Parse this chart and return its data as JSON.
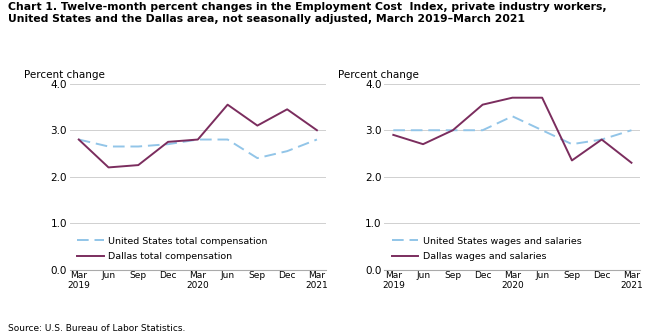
{
  "title": "Chart 1. Twelve-month percent changes in the Employment Cost  Index, private industry workers,\nUnited States and the Dallas area, not seasonally adjusted, March 2019–March 2021",
  "source": "Source: U.S. Bureau of Labor Statistics.",
  "ylabel": "Percent change",
  "x_labels": [
    "Mar\n2019",
    "Jun",
    "Sep",
    "Dec",
    "Mar\n2020",
    "Jun",
    "Sep",
    "Dec",
    "Mar\n2021"
  ],
  "ylim": [
    0.0,
    4.0
  ],
  "yticks": [
    0.0,
    1.0,
    2.0,
    3.0,
    4.0
  ],
  "chart1_us": [
    2.8,
    2.65,
    2.65,
    2.7,
    2.8,
    2.8,
    2.4,
    2.55,
    2.8
  ],
  "chart1_dallas": [
    2.8,
    2.2,
    2.25,
    2.75,
    2.8,
    3.55,
    3.1,
    3.45,
    3.0
  ],
  "chart1_us_label": "United States total compensation",
  "chart1_dallas_label": "Dallas total compensation",
  "chart2_us": [
    3.0,
    3.0,
    3.0,
    3.0,
    3.3,
    3.0,
    2.7,
    2.8,
    3.0
  ],
  "chart2_dallas": [
    2.9,
    2.7,
    3.0,
    3.55,
    3.7,
    3.7,
    2.35,
    2.8,
    2.3
  ],
  "chart2_us_label": "United States wages and salaries",
  "chart2_dallas_label": "Dallas wages and salaries",
  "us_color": "#92C5E8",
  "dallas_color": "#7B2D5E",
  "lw": 1.4
}
